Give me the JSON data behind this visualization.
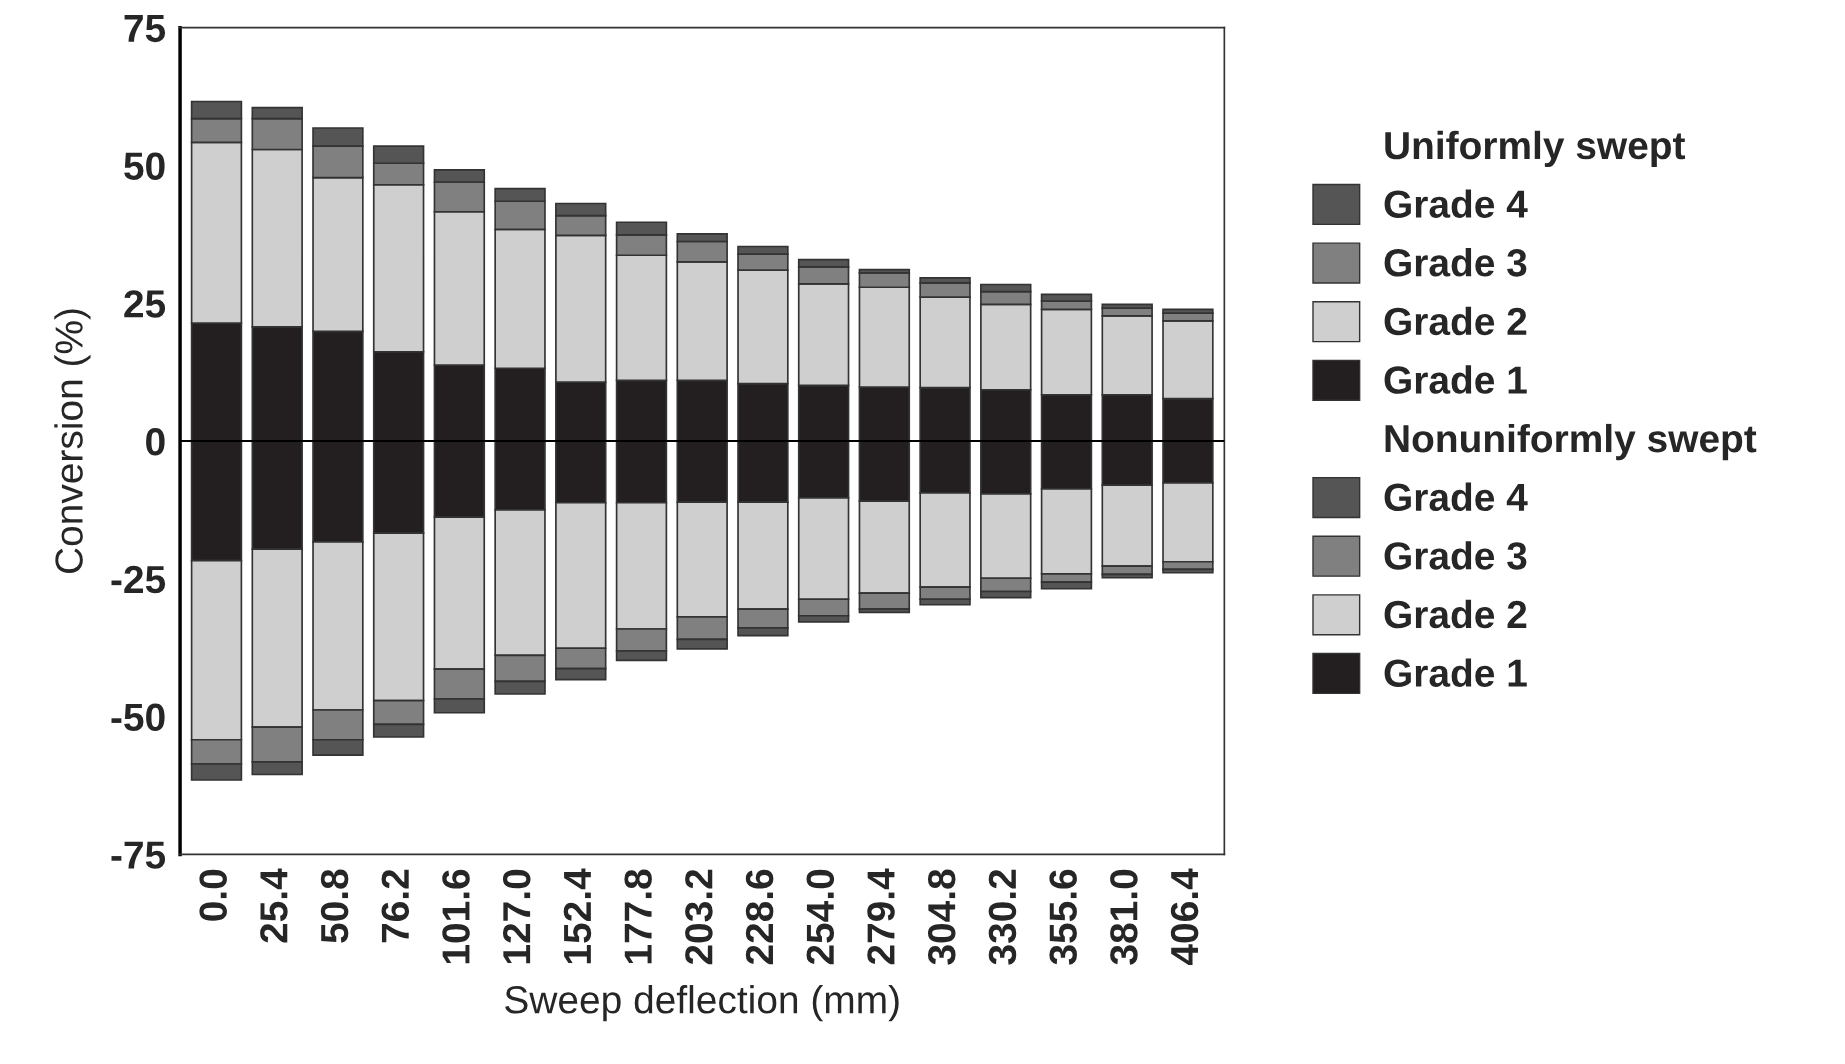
{
  "chart_data": {
    "type": "bar",
    "stacked": true,
    "xlabel": "Sweep deflection (mm)",
    "ylabel": "Conversion (%)",
    "categories": [
      "0.0",
      "25.4",
      "50.8",
      "76.2",
      "101.6",
      "127.0",
      "152.4",
      "177.8",
      "203.2",
      "228.6",
      "254.0",
      "279.4",
      "304.8",
      "330.2",
      "355.6",
      "381.0",
      "406.4"
    ],
    "series": [
      {
        "name": "Grade 1",
        "color": "#231f20",
        "values": [
          21.4,
          20.7,
          19.9,
          16.2,
          13.8,
          13.2,
          10.7,
          11.0,
          11.0,
          10.4,
          10.1,
          9.8,
          9.7,
          9.3,
          8.4,
          8.4,
          7.7
        ]
      },
      {
        "name": "Grade 2",
        "color": "#cfcfcf",
        "values": [
          32.8,
          32.2,
          27.9,
          30.3,
          27.8,
          25.2,
          26.6,
          22.7,
          21.5,
          20.6,
          18.4,
          18.1,
          16.4,
          15.5,
          15.5,
          14.3,
          14.1
        ]
      },
      {
        "name": "Grade 3",
        "color": "#808080",
        "values": [
          4.3,
          5.6,
          5.7,
          3.9,
          5.4,
          5.1,
          3.6,
          3.7,
          3.7,
          2.9,
          3.1,
          2.6,
          2.6,
          2.3,
          1.5,
          1.4,
          1.4
        ]
      },
      {
        "name": "Grade 4",
        "color": "#555555",
        "values": [
          3.1,
          2.0,
          3.3,
          3.1,
          2.2,
          2.3,
          2.2,
          2.3,
          1.4,
          1.4,
          1.3,
          0.6,
          0.9,
          1.3,
          1.2,
          0.7,
          0.7
        ]
      },
      {
        "name": "Grade 1",
        "color": "#231f20",
        "values": [
          -21.7,
          -19.6,
          -18.3,
          -16.7,
          -13.8,
          -12.5,
          -11.2,
          -11.2,
          -11.1,
          -11.1,
          -10.3,
          -10.9,
          -9.4,
          -9.6,
          -8.7,
          -8.0,
          -7.6
        ]
      },
      {
        "name": "Grade 2",
        "color": "#cfcfcf",
        "values": [
          -32.5,
          -32.3,
          -30.5,
          -30.4,
          -27.6,
          -26.4,
          -26.4,
          -22.9,
          -20.8,
          -19.4,
          -18.4,
          -16.7,
          -17.1,
          -15.3,
          -15.4,
          -14.7,
          -14.3
        ]
      },
      {
        "name": "Grade 3",
        "color": "#808080",
        "values": [
          -4.4,
          -6.3,
          -5.4,
          -4.3,
          -5.4,
          -4.7,
          -3.7,
          -4.0,
          -4.1,
          -3.4,
          -3.0,
          -2.9,
          -2.2,
          -2.4,
          -1.5,
          -1.5,
          -1.4
        ]
      },
      {
        "name": "Grade 4",
        "color": "#555555",
        "values": [
          -2.9,
          -2.3,
          -2.8,
          -2.3,
          -2.5,
          -2.3,
          -2.0,
          -1.7,
          -1.7,
          -1.4,
          -1.1,
          -0.6,
          -1.0,
          -1.1,
          -1.2,
          -0.6,
          -0.6
        ]
      }
    ],
    "annotations": [
      "Uniformly swept",
      "Nonuniformly swept"
    ],
    "ylim": [
      -75,
      75
    ],
    "yticks": [
      -75,
      -50,
      -25,
      0,
      25,
      50,
      75
    ],
    "ref_lines": [
      {
        "axis": "y",
        "value": 0,
        "color": "#000000"
      }
    ],
    "legend": "right",
    "grid": false
  }
}
